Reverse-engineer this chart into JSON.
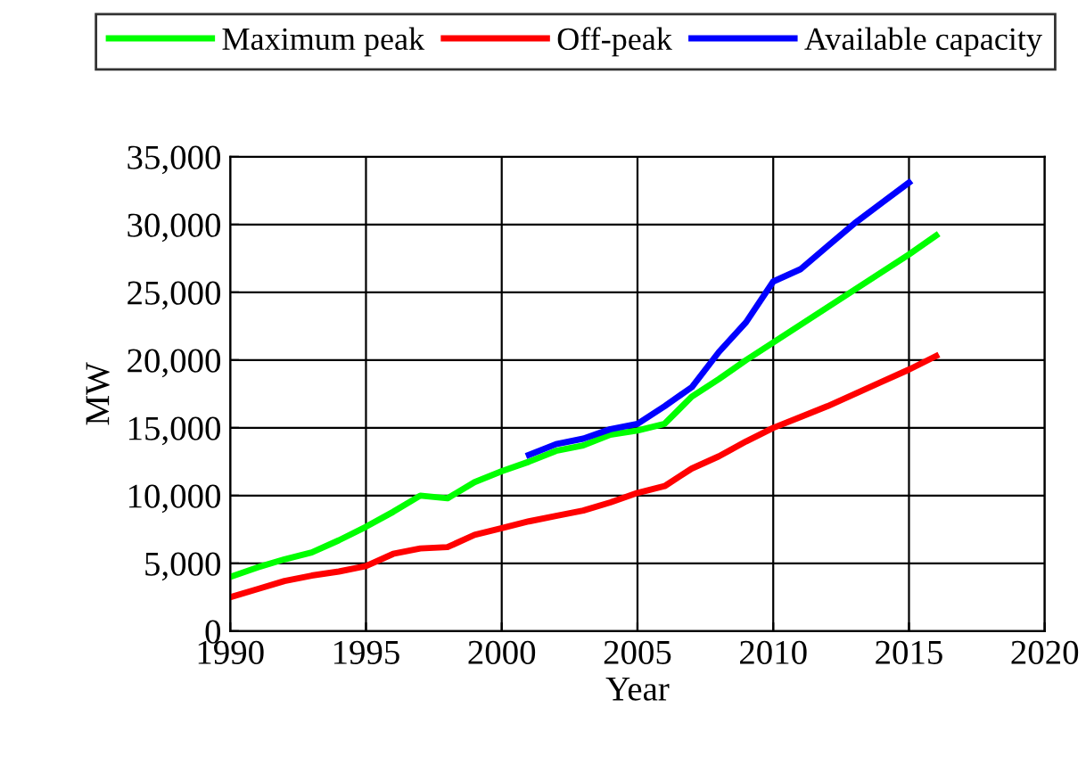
{
  "chart_data": {
    "type": "line",
    "xlabel": "Year",
    "ylabel": "MW",
    "xlim": [
      1990,
      2020
    ],
    "xticks": [
      1990,
      1995,
      2000,
      2005,
      2010,
      2015,
      2020
    ],
    "ylim": [
      0,
      35000
    ],
    "yticks": [
      {
        "value": 0,
        "label": "0"
      },
      {
        "value": 5000,
        "label": "5,000"
      },
      {
        "value": 10000,
        "label": "10,000"
      },
      {
        "value": 15000,
        "label": "15,000"
      },
      {
        "value": 20000,
        "label": "20,000"
      },
      {
        "value": 25000,
        "label": "25,000"
      },
      {
        "value": 30000,
        "label": "30,000"
      },
      {
        "value": 35000,
        "label": "35,000"
      }
    ],
    "grid": true,
    "legend": "top",
    "marker": "none",
    "line_style": "solid",
    "series": [
      {
        "name": "Maximum peak",
        "color": "#00ff00",
        "x": [
          1990,
          1991,
          1992,
          1993,
          1994,
          1995,
          1996,
          1997,
          1998,
          1999,
          2000,
          2001,
          2002,
          2003,
          2004,
          2005,
          2006,
          2007,
          2008,
          2009,
          2010,
          2011,
          2012,
          2013,
          2014,
          2015,
          2016
        ],
        "values": [
          4000,
          4700,
          5300,
          5800,
          6700,
          7700,
          8800,
          10000,
          9800,
          11000,
          11800,
          12500,
          13300,
          13700,
          14500,
          14800,
          15300,
          17300,
          18600,
          20000,
          21300,
          22600,
          23900,
          25200,
          26500,
          27800,
          29200
        ]
      },
      {
        "name": "Off-peak",
        "color": "#ff0000",
        "x": [
          1990,
          1991,
          1992,
          1993,
          1994,
          1995,
          1996,
          1997,
          1998,
          1999,
          2000,
          2001,
          2002,
          2003,
          2004,
          2005,
          2006,
          2007,
          2008,
          2009,
          2010,
          2011,
          2012,
          2013,
          2014,
          2015,
          2016
        ],
        "values": [
          2500,
          3100,
          3700,
          4100,
          4400,
          4800,
          5700,
          6100,
          6200,
          7100,
          7600,
          8100,
          8500,
          8900,
          9500,
          10200,
          10700,
          12000,
          12900,
          14000,
          15000,
          15800,
          16600,
          17500,
          18400,
          19300,
          20300
        ]
      },
      {
        "name": "Available capacity",
        "color": "#0000ff",
        "x": [
          2001,
          2002,
          2003,
          2004,
          2005,
          2006,
          2007,
          2008,
          2009,
          2010,
          2011,
          2012,
          2013,
          2014,
          2015
        ],
        "values": [
          13000,
          13800,
          14200,
          14900,
          15300,
          16600,
          18000,
          20600,
          22800,
          25800,
          26700,
          28400,
          30100,
          31600,
          33100
        ]
      }
    ]
  }
}
